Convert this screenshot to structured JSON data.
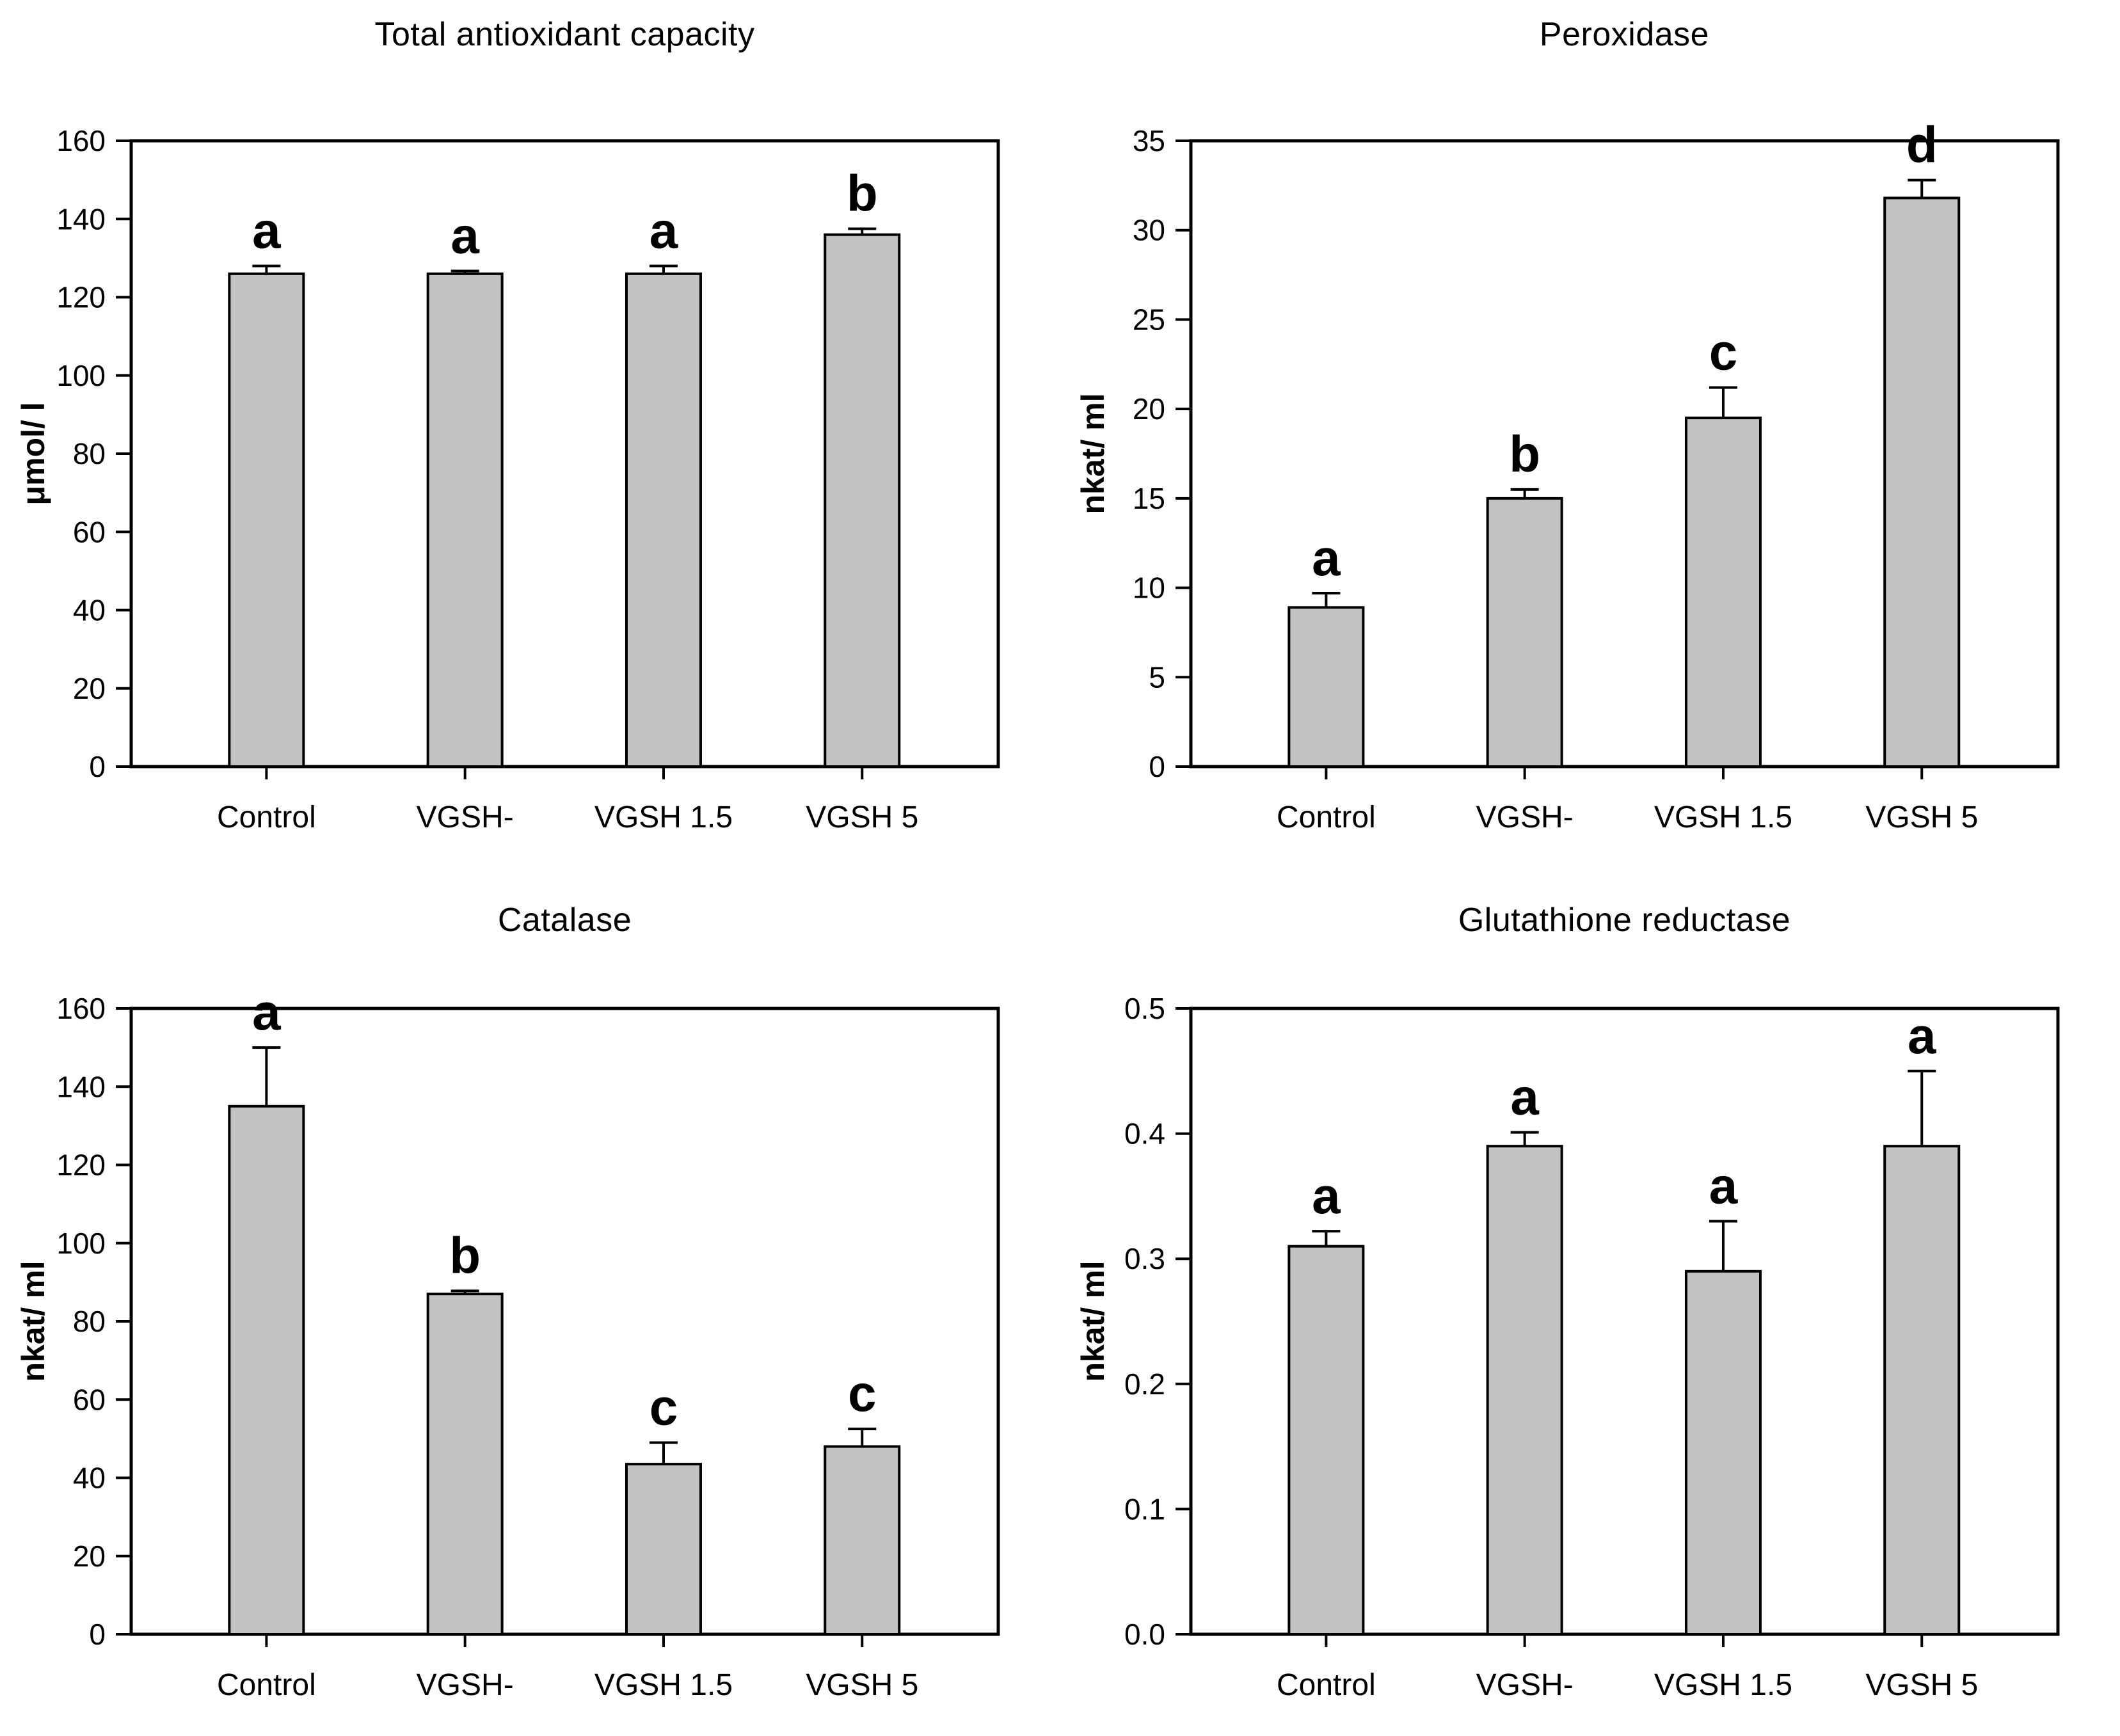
{
  "figure": {
    "background": "#ffffff",
    "bar_fill": "#c2c2c2",
    "bar_stroke": "#000000",
    "axis_color": "#000000",
    "text_color": "#000000"
  },
  "chart_data": [
    {
      "type": "bar",
      "title": "Total antioxidant capacity",
      "xlabel": "",
      "ylabel": "μmol/ l",
      "categories": [
        "Control",
        "VGSH-",
        "VGSH 1.5",
        "VGSH 5"
      ],
      "values": [
        126,
        126,
        126,
        136
      ],
      "errors": [
        2,
        0.7,
        2,
        1.5
      ],
      "letters": [
        "a",
        "a",
        "a",
        "b"
      ],
      "ylim": [
        0,
        160
      ],
      "yticks": [
        "0",
        "20",
        "40",
        "60",
        "80",
        "100",
        "120",
        "140",
        "160"
      ],
      "grid": false,
      "legend": "none"
    },
    {
      "type": "bar",
      "title": "Peroxidase",
      "xlabel": "",
      "ylabel": "nkat/ ml",
      "categories": [
        "Control",
        "VGSH-",
        "VGSH 1.5",
        "VGSH 5"
      ],
      "values": [
        8.9,
        15.0,
        19.5,
        31.8
      ],
      "errors": [
        0.8,
        0.5,
        1.7,
        1.0
      ],
      "letters": [
        "a",
        "b",
        "c",
        "d"
      ],
      "ylim": [
        0,
        35
      ],
      "yticks": [
        "0",
        "5",
        "10",
        "15",
        "20",
        "25",
        "30",
        "35"
      ],
      "grid": false,
      "legend": "none"
    },
    {
      "type": "bar",
      "title": "Catalase",
      "xlabel": "",
      "ylabel": "nkat/ ml",
      "categories": [
        "Control",
        "VGSH-",
        "VGSH 1.5",
        "VGSH 5"
      ],
      "values": [
        135,
        87,
        43.5,
        48
      ],
      "errors": [
        15,
        0.8,
        5.5,
        4.5
      ],
      "letters": [
        "a",
        "b",
        "c",
        "c"
      ],
      "ylim": [
        0,
        160
      ],
      "yticks": [
        "0",
        "20",
        "40",
        "60",
        "80",
        "100",
        "120",
        "140",
        "160"
      ],
      "grid": false,
      "legend": "none"
    },
    {
      "type": "bar",
      "title": "Glutathione reductase",
      "xlabel": "",
      "ylabel": "nkat/ ml",
      "categories": [
        "Control",
        "VGSH-",
        "VGSH 1.5",
        "VGSH 5"
      ],
      "values": [
        0.31,
        0.39,
        0.29,
        0.39
      ],
      "errors": [
        0.012,
        0.011,
        0.04,
        0.06
      ],
      "letters": [
        "a",
        "a",
        "a",
        "a"
      ],
      "ylim": [
        0,
        0.5
      ],
      "yticks": [
        "0.0",
        "0.1",
        "0.2",
        "0.3",
        "0.4",
        "0.5"
      ],
      "grid": false,
      "legend": "none"
    }
  ]
}
